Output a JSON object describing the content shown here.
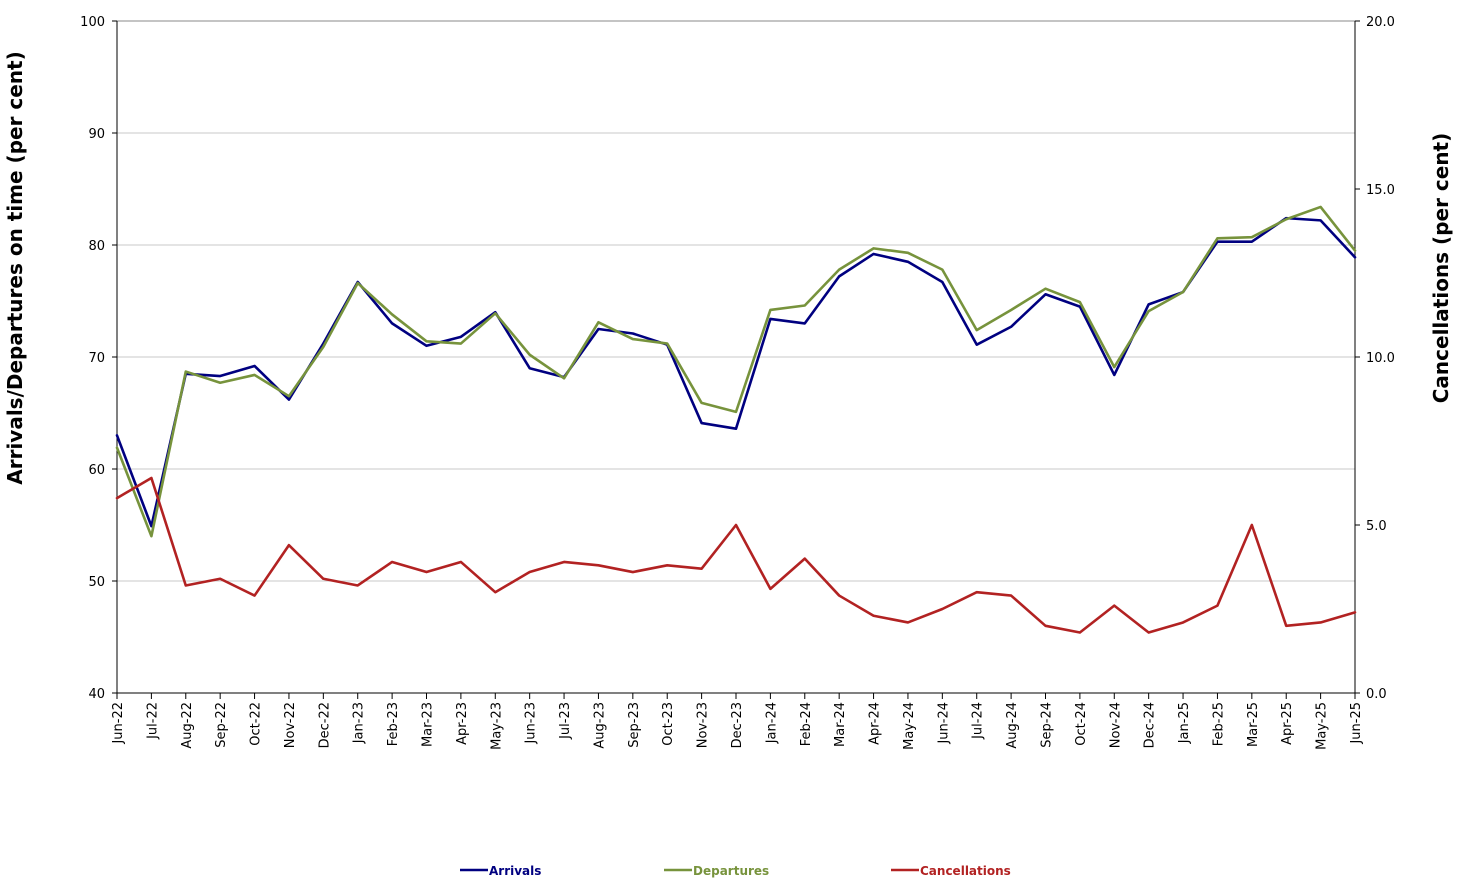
{
  "chart_data": {
    "type": "line",
    "categories": [
      "Jun-22",
      "Jul-22",
      "Aug-22",
      "Sep-22",
      "Oct-22",
      "Nov-22",
      "Dec-22",
      "Jan-23",
      "Feb-23",
      "Mar-23",
      "Apr-23",
      "May-23",
      "Jun-23",
      "Jul-23",
      "Aug-23",
      "Sep-23",
      "Oct-23",
      "Nov-23",
      "Dec-23",
      "Jan-24",
      "Feb-24",
      "Mar-24",
      "Apr-24",
      "May-24",
      "Jun-24",
      "Jul-24",
      "Aug-24",
      "Sep-24",
      "Oct-24",
      "Nov-24",
      "Dec-24",
      "Jan-25",
      "Feb-25",
      "Mar-25",
      "Apr-25",
      "May-25",
      "Jun-25"
    ],
    "y_left": {
      "label": "Arrivals/Departures on time (per cent)",
      "lim": [
        40,
        100
      ],
      "ticks": [
        "40",
        "50",
        "60",
        "70",
        "80",
        "90",
        "100"
      ]
    },
    "y_right": {
      "label": "Cancellations (per cent)",
      "lim": [
        0,
        20
      ],
      "ticks": [
        "0.0",
        "5.0",
        "10.0",
        "15.0",
        "20.0"
      ]
    },
    "grid": "horizontal",
    "legend_position": "bottom",
    "series": [
      {
        "name": "Arrivals",
        "axis": "left",
        "color": "#000080",
        "values": [
          63.0,
          54.9,
          68.5,
          68.3,
          69.2,
          66.2,
          71.2,
          76.7,
          73.0,
          71.0,
          71.8,
          74.0,
          69.0,
          68.2,
          72.5,
          72.1,
          71.1,
          64.1,
          63.6,
          73.4,
          73.0,
          77.2,
          79.2,
          78.5,
          76.7,
          71.1,
          72.7,
          75.6,
          74.5,
          68.4,
          74.7,
          75.8,
          80.3,
          80.3,
          82.4,
          82.2,
          78.9
        ]
      },
      {
        "name": "Departures",
        "axis": "left",
        "color": "#77933C",
        "values": [
          61.9,
          54.0,
          68.7,
          67.7,
          68.4,
          66.5,
          70.9,
          76.6,
          73.8,
          71.4,
          71.2,
          73.9,
          70.2,
          68.1,
          73.1,
          71.6,
          71.2,
          65.9,
          65.1,
          74.2,
          74.6,
          77.8,
          79.7,
          79.3,
          77.8,
          72.4,
          74.2,
          76.1,
          74.9,
          69.1,
          74.1,
          75.8,
          80.6,
          80.7,
          82.3,
          83.4,
          79.5
        ]
      },
      {
        "name": "Cancellations",
        "axis": "right",
        "color": "#B22222",
        "values": [
          5.8,
          6.4,
          3.2,
          3.4,
          2.9,
          4.4,
          3.4,
          3.2,
          3.9,
          3.6,
          3.9,
          3.0,
          3.6,
          3.9,
          3.8,
          3.6,
          3.8,
          3.7,
          5.0,
          3.1,
          4.0,
          2.9,
          2.3,
          2.1,
          2.5,
          3.0,
          2.9,
          2.0,
          1.8,
          2.6,
          1.8,
          2.1,
          2.6,
          5.0,
          2.0,
          2.1,
          2.4
        ]
      }
    ]
  }
}
